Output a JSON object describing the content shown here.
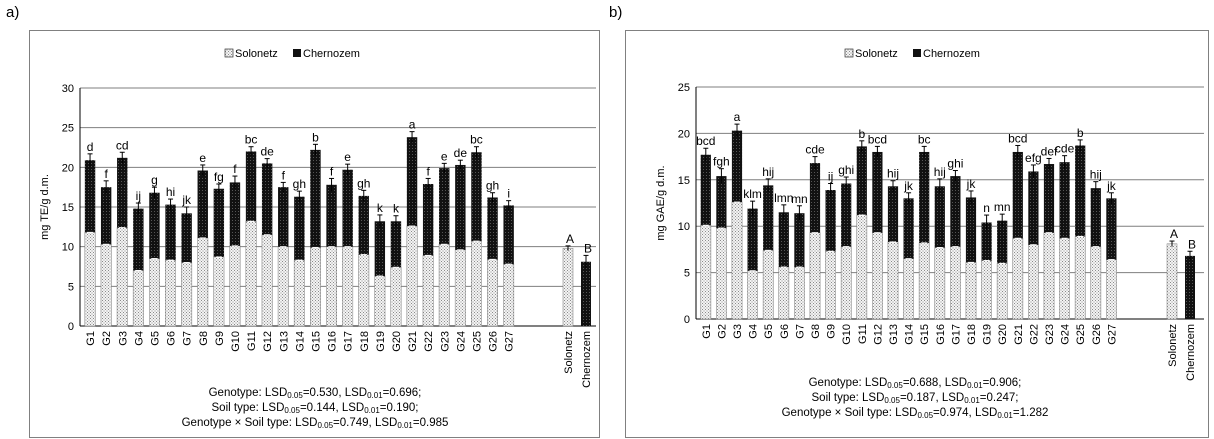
{
  "panels": [
    {
      "letter": "a)",
      "legend": [
        "Solonetz",
        "Chernozem"
      ],
      "ylabel": "mg TE/g d.m.",
      "lsd": {
        "genotype": "Genotype: LSD0.05=0.530, LSD0.01=0.696;",
        "soil": "Soil type: LSD0.05=0.144, LSD0.01=0.190;",
        "interaction": "Genotype × Soil type: LSD0.05=0.749, LSD0.01=0.985"
      }
    },
    {
      "letter": "b)",
      "legend": [
        "Solonetz",
        "Chernozem"
      ],
      "ylabel": "mg GAE/g d.m.",
      "lsd": {
        "genotype": "Genotype: LSD0.05=0.688, LSD0.01=0.906;",
        "soil": "Soil type: LSD0.05=0.187, LSD0.01=0.247;",
        "interaction": "Genotype × Soil type: LSD0.05=0.974, LSD0.01=1.282"
      }
    }
  ],
  "colors": {
    "solonetz": "#f0f0f0",
    "chernozem": "#1a1a1a",
    "grid": "#808080"
  },
  "chart_data": [
    {
      "type": "bar",
      "stacked": true,
      "categories": [
        "G1",
        "G2",
        "G3",
        "G4",
        "G5",
        "G6",
        "G7",
        "G8",
        "G9",
        "G10",
        "G11",
        "G12",
        "G13",
        "G14",
        "G15",
        "G16",
        "G17",
        "G18",
        "G19",
        "G20",
        "G21",
        "G22",
        "G23",
        "G24",
        "G25",
        "G26",
        "G27"
      ],
      "series": [
        {
          "name": "Solonetz",
          "values": [
            11.8,
            10.3,
            12.4,
            7.0,
            8.5,
            8.3,
            8.0,
            11.1,
            8.7,
            10.1,
            13.2,
            11.5,
            10.0,
            8.3,
            9.9,
            10.0,
            10.0,
            9.0,
            6.3,
            7.4,
            12.6,
            8.9,
            10.3,
            9.6,
            10.7,
            8.4,
            7.8
          ]
        },
        {
          "name": "Chernozem",
          "values": [
            9.1,
            7.2,
            8.8,
            7.8,
            8.3,
            7.0,
            6.2,
            8.5,
            8.6,
            8.0,
            8.8,
            9.0,
            7.5,
            8.0,
            12.3,
            7.8,
            9.7,
            7.4,
            6.9,
            5.8,
            11.2,
            9.0,
            9.6,
            10.7,
            11.2,
            7.8,
            7.4
          ]
        }
      ],
      "errors": [
        0.8,
        0.8,
        0.7,
        0.7,
        0.7,
        0.7,
        0.8,
        0.7,
        0.6,
        0.8,
        0.6,
        0.6,
        0.6,
        0.7,
        0.7,
        0.8,
        0.7,
        0.7,
        0.8,
        0.7,
        0.7,
        0.7,
        0.6,
        0.6,
        0.7,
        0.6,
        0.6
      ],
      "letters": [
        "d",
        "f",
        "cd",
        "ij",
        "g",
        "hi",
        "jk",
        "e",
        "fg",
        "f",
        "bc",
        "de",
        "f",
        "gh",
        "b",
        "f",
        "e",
        "gh",
        "k",
        "k",
        "a",
        "f",
        "e",
        "de",
        "bc",
        "gh",
        "i"
      ],
      "summary": {
        "categories": [
          "Solonetz",
          "Chernozem"
        ],
        "values": [
          9.8,
          8.1
        ],
        "errors": [
          0.3,
          0.8
        ],
        "letters": [
          "A",
          "B"
        ]
      },
      "xlabel": "",
      "ylabel": "mg TE/g d.m.",
      "ylim": [
        0,
        30
      ],
      "yticks": [
        0,
        5,
        10,
        15,
        20,
        25,
        30
      ],
      "grid": true,
      "legend_position": "top"
    },
    {
      "type": "bar",
      "stacked": true,
      "categories": [
        "G1",
        "G2",
        "G3",
        "G4",
        "G5",
        "G6",
        "G7",
        "G8",
        "G9",
        "G10",
        "G11",
        "G12",
        "G13",
        "G14",
        "G15",
        "G16",
        "G17",
        "G18",
        "G19",
        "G20",
        "G21",
        "G22",
        "G23",
        "G24",
        "G25",
        "G26",
        "G27"
      ],
      "series": [
        {
          "name": "Solonetz",
          "values": [
            10.1,
            9.8,
            12.6,
            5.2,
            7.4,
            5.6,
            5.6,
            9.3,
            7.3,
            7.8,
            11.2,
            9.3,
            8.3,
            6.5,
            8.2,
            7.7,
            7.8,
            6.1,
            6.3,
            6.0,
            8.7,
            8.0,
            9.3,
            8.7,
            8.9,
            7.8,
            6.4
          ]
        },
        {
          "name": "Chernozem",
          "values": [
            7.6,
            5.6,
            7.7,
            6.7,
            7.0,
            5.9,
            5.8,
            7.5,
            6.6,
            6.8,
            7.4,
            8.7,
            6.0,
            6.5,
            9.8,
            6.6,
            7.6,
            7.0,
            4.1,
            4.6,
            9.3,
            7.9,
            7.4,
            8.2,
            9.8,
            6.3,
            6.6
          ]
        }
      ],
      "errors": [
        0.7,
        0.8,
        0.7,
        0.8,
        0.7,
        0.8,
        0.8,
        0.7,
        0.7,
        0.7,
        0.6,
        0.6,
        0.6,
        0.6,
        0.6,
        0.8,
        0.6,
        0.7,
        0.8,
        0.7,
        0.7,
        0.7,
        0.6,
        0.7,
        0.6,
        0.7,
        0.6
      ],
      "letters": [
        "bcd",
        "fgh",
        "a",
        "klm",
        "hij",
        "lmn",
        "mn",
        "cde",
        "ij",
        "ghi",
        "b",
        "bcd",
        "hij",
        "jk",
        "bc",
        "hij",
        "ghi",
        "jk",
        "n",
        "mn",
        "bcd",
        "efg",
        "def",
        "cde",
        "b",
        "hij",
        "jk"
      ],
      "summary": {
        "categories": [
          "Solonetz",
          "Chernozem"
        ],
        "values": [
          8.1,
          6.8
        ],
        "errors": [
          0.3,
          0.5
        ],
        "letters": [
          "A",
          "B"
        ]
      },
      "xlabel": "",
      "ylabel": "mg GAE/g d.m.",
      "ylim": [
        0,
        25
      ],
      "yticks": [
        0,
        5,
        10,
        15,
        20,
        25
      ],
      "grid": true,
      "legend_position": "top"
    }
  ]
}
